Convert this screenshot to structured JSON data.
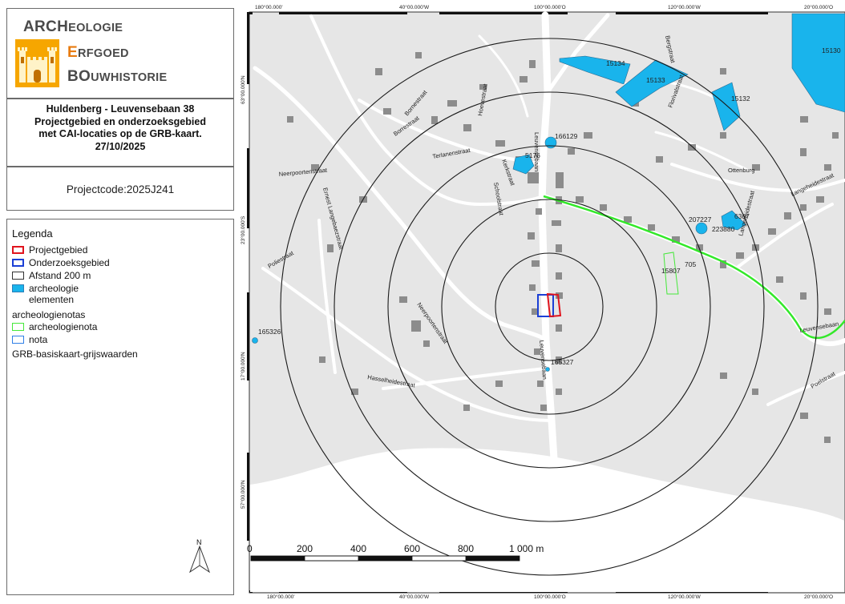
{
  "logo": {
    "line1_cap": "ARCH",
    "line1_rest": "EOLOGIE",
    "line2_cap": "E",
    "line2_rest": "RFGOED",
    "line3_cap": "BO",
    "line3_rest": "UWHISTORIE"
  },
  "title": {
    "line1": "Huldenberg - Leuvensebaan 38",
    "line2": "Projectgebied en onderzoeksgebied",
    "line3": "met CAI-locaties op de GRB-kaart.",
    "line4": "27/10/2025"
  },
  "project_code": "Projectcode:2025J241",
  "legend": {
    "title": "Legenda",
    "items": [
      {
        "label": "Projectgebied",
        "stroke": "#e0141e",
        "fill": "none"
      },
      {
        "label": "Onderzoeksgebied",
        "stroke": "#1b3fd6",
        "fill": "none"
      },
      {
        "label": "Afstand 200 m",
        "stroke": "#333333",
        "fill": "none"
      },
      {
        "label": "archeologie",
        "label2": "elementen",
        "stroke": "#2c7fb8",
        "fill": "#19b4ec"
      }
    ],
    "group_title": "archeologienotas",
    "group_items": [
      {
        "label": "archeologienota",
        "stroke": "#45e83a"
      },
      {
        "label": "nota",
        "stroke": "#2f7fe6"
      }
    ],
    "basemap": "GRB-basiskaart-grijswaarden"
  },
  "map": {
    "top_coords": [
      "180°00.000'",
      "40°00.000'W",
      "100°00.000'O",
      "120°00.000'W",
      "20°00.000'O"
    ],
    "left_coords": [
      "63°00.000'N",
      "23°00.000'S",
      "17°00.000'N",
      "57°00.000'N"
    ],
    "bottom_coords": [
      "180°00.000'",
      "40°00.000'W",
      "100°00.000'O",
      "120°00.000'W",
      "20°00.000'O"
    ],
    "streets": [
      "Bergstraat",
      "Florivalstraat",
      "Hoevestraat",
      "Bornestraat",
      "Borrestraat",
      "Terlanenstraat",
      "Kerkstraat",
      "Schoolstraat",
      "Neerpoortenstraat",
      "Ernest Langebaezstraat",
      "Poliestraat",
      "Neerpoortenstraat",
      "Hasselheidestraat",
      "Leuvensebaan",
      "Leuvensebaan",
      "Langeheidestraat",
      "Langeheidestraat",
      "Poelstraat",
      "Leuvensebaan",
      "Ottenburg"
    ],
    "cai_locations": [
      "15134",
      "15133",
      "15132",
      "15130",
      "166129",
      "5176",
      "207227",
      "223880",
      "6367",
      "705",
      "15807",
      "165326",
      "165327"
    ],
    "scalebar_labels": [
      "0",
      "200",
      "400",
      "600",
      "800",
      "1 000 m"
    ],
    "north_label": "N",
    "buffer_count": 5,
    "buffer_distance_m": 200,
    "colors": {
      "background": "#e6e6e6",
      "buildings": "#8a8a8a",
      "streets": "#ffffff",
      "cai": "#19b4ec",
      "project": "#e0141e",
      "study": "#1b3fd6",
      "note_line": "#33e82a"
    }
  }
}
